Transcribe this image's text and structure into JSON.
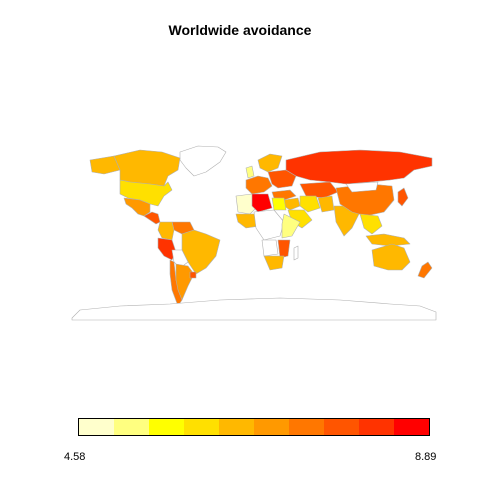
{
  "title": "Worldwide avoidance",
  "legend": {
    "min_label": "4.58",
    "max_label": "8.89",
    "colors": [
      "#FFFFCC",
      "#FFFF80",
      "#FFFF00",
      "#FFE000",
      "#FFB800",
      "#FF9900",
      "#FF7700",
      "#FF5500",
      "#FF3300",
      "#FF0000"
    ]
  },
  "regions": [
    {
      "name": "greenland",
      "color": "#ffffff"
    },
    {
      "name": "canada",
      "color": "#FFB800"
    },
    {
      "name": "alaska",
      "color": "#FFB800"
    },
    {
      "name": "usa",
      "color": "#FFE000"
    },
    {
      "name": "mexico",
      "color": "#FF9900"
    },
    {
      "name": "central-america",
      "color": "#FF5500"
    },
    {
      "name": "venezuela",
      "color": "#FF7700"
    },
    {
      "name": "colombia",
      "color": "#FFB800"
    },
    {
      "name": "brazil",
      "color": "#FFB800"
    },
    {
      "name": "peru",
      "color": "#FF3300"
    },
    {
      "name": "bolivia",
      "color": "#ffffff"
    },
    {
      "name": "chile",
      "color": "#FF7700"
    },
    {
      "name": "argentina",
      "color": "#FF9900"
    },
    {
      "name": "uruguay",
      "color": "#FF5500"
    },
    {
      "name": "scandinavia",
      "color": "#FFB800"
    },
    {
      "name": "uk",
      "color": "#FFFF80"
    },
    {
      "name": "western-europe",
      "color": "#FF7700"
    },
    {
      "name": "eastern-europe",
      "color": "#FF5500"
    },
    {
      "name": "russia",
      "color": "#FF3300"
    },
    {
      "name": "kazakhstan",
      "color": "#FF5500"
    },
    {
      "name": "turkey",
      "color": "#FF7700"
    },
    {
      "name": "middle-east",
      "color": "#FFB800"
    },
    {
      "name": "iran",
      "color": "#FFE000"
    },
    {
      "name": "arabia",
      "color": "#FFE000"
    },
    {
      "name": "pakistan",
      "color": "#FFB800"
    },
    {
      "name": "india",
      "color": "#FFB800"
    },
    {
      "name": "china",
      "color": "#FF7700"
    },
    {
      "name": "mongolia",
      "color": "#ffffff"
    },
    {
      "name": "japan",
      "color": "#FF5500"
    },
    {
      "name": "se-asia",
      "color": "#FFE000"
    },
    {
      "name": "indonesia",
      "color": "#FFB800"
    },
    {
      "name": "australia",
      "color": "#FFB800"
    },
    {
      "name": "new-zealand",
      "color": "#FF7700"
    },
    {
      "name": "north-africa-west",
      "color": "#FFFFCC"
    },
    {
      "name": "libya",
      "color": "#FF0000"
    },
    {
      "name": "egypt",
      "color": "#FFFF00"
    },
    {
      "name": "west-africa",
      "color": "#FFB800"
    },
    {
      "name": "central-africa",
      "color": "#ffffff"
    },
    {
      "name": "east-africa",
      "color": "#FFFF80"
    },
    {
      "name": "mozambique",
      "color": "#FF5500"
    },
    {
      "name": "angola",
      "color": "#ffffff"
    },
    {
      "name": "south-africa",
      "color": "#FFB800"
    },
    {
      "name": "madagascar",
      "color": "#ffffff"
    },
    {
      "name": "antarctica",
      "color": "#ffffff"
    }
  ]
}
